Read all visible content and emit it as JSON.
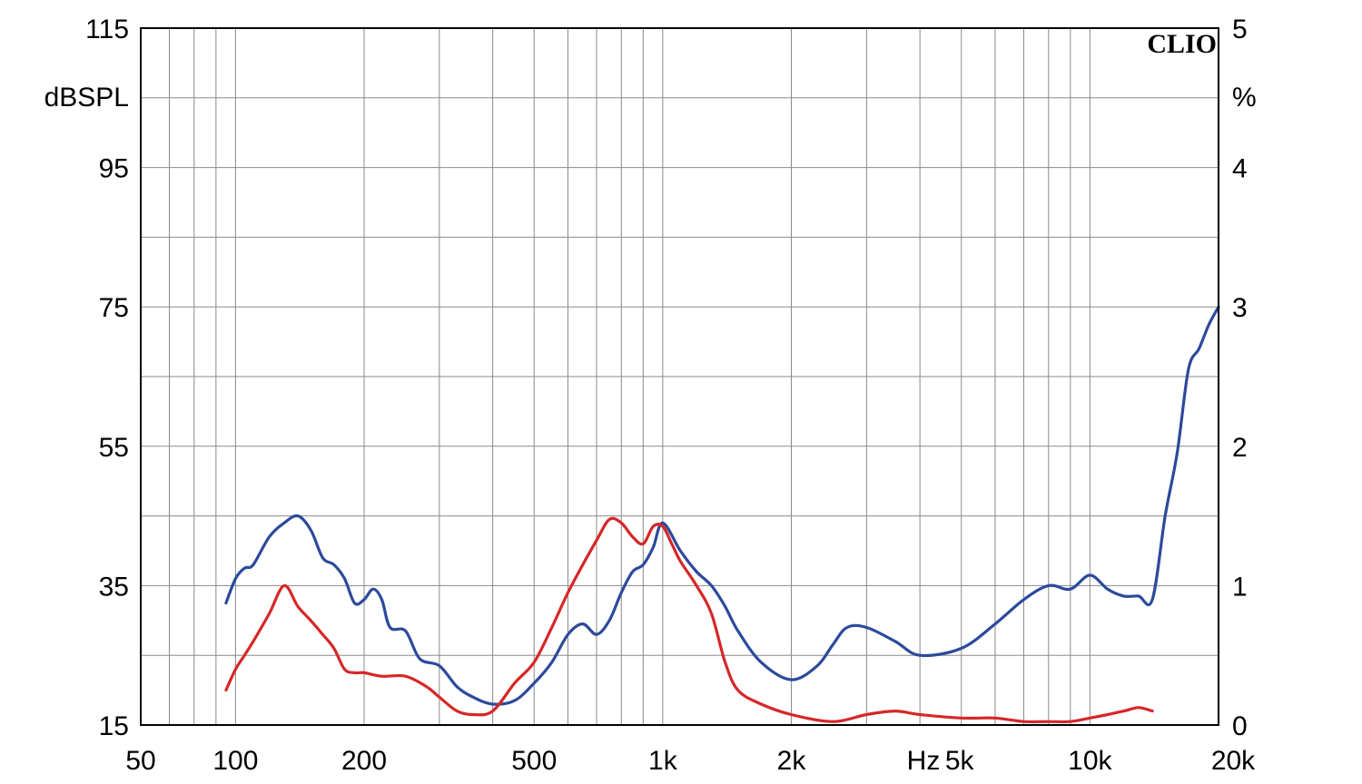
{
  "chart_data": {
    "type": "line",
    "title": "",
    "brand": "CLIO",
    "xlabel": "Hz",
    "ylabel_left": "dBSPL",
    "ylabel_right": "%",
    "x_scale": "log",
    "xlim": [
      60,
      20000
    ],
    "ylim_left": [
      15,
      115
    ],
    "ylim_right": [
      0,
      5
    ],
    "grid": true,
    "x_ticks": [
      {
        "label": "50",
        "value": 50
      },
      {
        "label": "100",
        "value": 100
      },
      {
        "label": "200",
        "value": 200
      },
      {
        "label": "500",
        "value": 500
      },
      {
        "label": "1k",
        "value": 1000
      },
      {
        "label": "2k",
        "value": 2000
      },
      {
        "label": "5k",
        "value": 5000
      },
      {
        "label": "10k",
        "value": 10000
      },
      {
        "label": "20k",
        "value": 20000
      }
    ],
    "y_ticks_left": [
      "15",
      "35",
      "55",
      "75",
      "95",
      "115"
    ],
    "y_ticks_right": [
      "0",
      "1",
      "2",
      "3",
      "4",
      "5"
    ],
    "series": [
      {
        "color": "#2c4a9c",
        "axis": "left",
        "x": [
          95,
          100,
          105,
          110,
          120,
          130,
          140,
          150,
          160,
          170,
          180,
          190,
          200,
          210,
          220,
          230,
          250,
          270,
          300,
          330,
          360,
          400,
          450,
          500,
          550,
          600,
          650,
          700,
          750,
          800,
          850,
          900,
          950,
          1000,
          1100,
          1200,
          1300,
          1400,
          1500,
          1700,
          2000,
          2300,
          2500,
          2700,
          3000,
          3500,
          4000,
          5000,
          6000,
          7000,
          8000,
          9000,
          10000,
          11000,
          12000,
          13000,
          14000,
          15000,
          16000,
          17000,
          18000,
          19000,
          20000
        ],
        "y": [
          32.5,
          36,
          37.5,
          38,
          42,
          44,
          45,
          43,
          39,
          38,
          36,
          32.5,
          33,
          34.5,
          33,
          29,
          28.5,
          24.5,
          23.5,
          20.5,
          19,
          18,
          18.5,
          21,
          24,
          28,
          29.5,
          28,
          30,
          34,
          37,
          38,
          40.5,
          44,
          40,
          37,
          35,
          32,
          28.5,
          24,
          21.5,
          23.5,
          26.5,
          29,
          29,
          27,
          25,
          26,
          29.5,
          33,
          35,
          34.5,
          36.5,
          34.5,
          33.5,
          33.5,
          33,
          45,
          54,
          66,
          69,
          72.5,
          75
        ]
      },
      {
        "color": "#d62728",
        "axis": "left",
        "x": [
          95,
          100,
          105,
          110,
          120,
          130,
          140,
          150,
          160,
          170,
          180,
          190,
          200,
          220,
          250,
          280,
          300,
          330,
          360,
          400,
          450,
          500,
          550,
          600,
          650,
          700,
          750,
          800,
          850,
          900,
          950,
          1000,
          1050,
          1100,
          1200,
          1300,
          1400,
          1500,
          1700,
          2000,
          2500,
          3000,
          3500,
          4000,
          5000,
          6000,
          7000,
          8000,
          9000,
          10000,
          11000,
          12000,
          13000,
          14000
        ],
        "y": [
          20,
          23,
          25,
          27,
          31,
          35,
          32,
          30,
          28,
          26,
          23,
          22.5,
          22.5,
          22,
          22,
          20.5,
          19,
          17,
          16.5,
          17,
          21,
          24,
          29,
          34,
          38,
          41.5,
          44.5,
          44,
          42,
          41,
          43.5,
          43.5,
          41,
          38.5,
          35,
          31,
          24,
          20,
          18,
          16.5,
          15.5,
          16.5,
          17,
          16.5,
          16,
          16,
          15.5,
          15.5,
          15.5,
          16,
          16.5,
          17,
          17.5,
          17
        ]
      }
    ]
  }
}
